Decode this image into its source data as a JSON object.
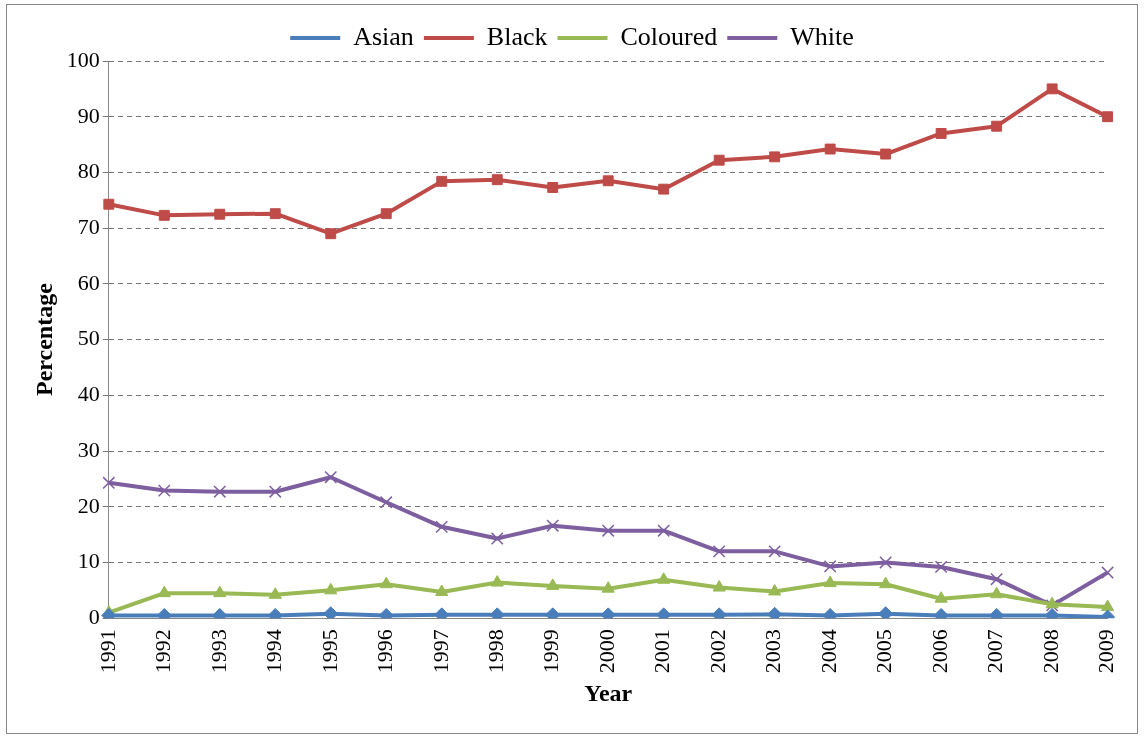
{
  "chart_data": {
    "type": "line",
    "xlabel": "Year",
    "ylabel": "Percentage",
    "legend": "top",
    "grid": "y",
    "line_style": "solid",
    "categories": [
      "1991",
      "1992",
      "1993",
      "1994",
      "1995",
      "1996",
      "1997",
      "1998",
      "1999",
      "2000",
      "2001",
      "2002",
      "2003",
      "2004",
      "2005",
      "2006",
      "2007",
      "2008",
      "2009"
    ],
    "ylim": [
      0,
      100
    ],
    "yticks": [
      0,
      10,
      20,
      30,
      40,
      50,
      60,
      70,
      80,
      90,
      100
    ],
    "series": [
      {
        "name": "Asian",
        "color": "#4a7ebb",
        "marker": "diamond",
        "values": [
          0.5,
          0.5,
          0.5,
          0.5,
          0.8,
          0.5,
          0.6,
          0.6,
          0.6,
          0.6,
          0.6,
          0.6,
          0.7,
          0.5,
          0.8,
          0.5,
          0.5,
          0.5,
          0.2
        ]
      },
      {
        "name": "Black",
        "color": "#be4b48",
        "marker": "square",
        "values": [
          74.3,
          72.3,
          72.5,
          72.6,
          69,
          72.6,
          78.4,
          78.7,
          77.3,
          78.5,
          77,
          82.2,
          82.8,
          84.2,
          83.3,
          87,
          88.3,
          95,
          90
        ]
      },
      {
        "name": "Coloured",
        "color": "#98b954",
        "marker": "triangle",
        "values": [
          1,
          4.5,
          4.5,
          4.2,
          5,
          6.1,
          4.7,
          6.4,
          5.8,
          5.3,
          6.9,
          5.5,
          4.8,
          6.3,
          6.1,
          3.5,
          4.3,
          2.5,
          2
        ]
      },
      {
        "name": "White",
        "color": "#7d5fa0",
        "marker": "cross",
        "values": [
          24.3,
          22.9,
          22.7,
          22.7,
          25.3,
          20.8,
          16.4,
          14.3,
          16.6,
          15.7,
          15.7,
          12,
          12,
          9.3,
          10,
          9.2,
          7,
          2.3,
          8.2
        ]
      }
    ]
  }
}
